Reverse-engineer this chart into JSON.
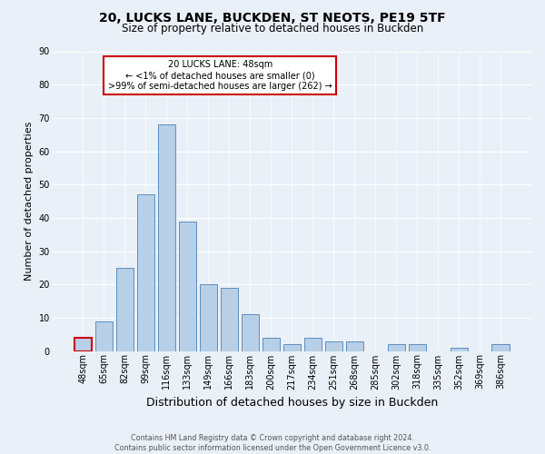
{
  "title1": "20, LUCKS LANE, BUCKDEN, ST NEOTS, PE19 5TF",
  "title2": "Size of property relative to detached houses in Buckden",
  "xlabel": "Distribution of detached houses by size in Buckden",
  "ylabel": "Number of detached properties",
  "footer": "Contains HM Land Registry data © Crown copyright and database right 2024.\nContains public sector information licensed under the Open Government Licence v3.0.",
  "categories": [
    "48sqm",
    "65sqm",
    "82sqm",
    "99sqm",
    "116sqm",
    "133sqm",
    "149sqm",
    "166sqm",
    "183sqm",
    "200sqm",
    "217sqm",
    "234sqm",
    "251sqm",
    "268sqm",
    "285sqm",
    "302sqm",
    "318sqm",
    "335sqm",
    "352sqm",
    "369sqm",
    "386sqm"
  ],
  "values": [
    4,
    9,
    25,
    47,
    68,
    39,
    20,
    19,
    11,
    4,
    2,
    4,
    3,
    3,
    0,
    2,
    2,
    0,
    1,
    0,
    2
  ],
  "bar_color": "#b8cfe8",
  "bar_edge_color": "#5a8fc0",
  "highlight_index": 0,
  "highlight_color": "#cc0000",
  "annotation_text": "20 LUCKS LANE: 48sqm\n← <1% of detached houses are smaller (0)\n>99% of semi-detached houses are larger (262) →",
  "annotation_box_color": "#ffffff",
  "annotation_box_edge": "#cc0000",
  "ylim": [
    0,
    90
  ],
  "yticks": [
    0,
    10,
    20,
    30,
    40,
    50,
    60,
    70,
    80,
    90
  ],
  "background_color": "#eaf0f8",
  "plot_background": "#eaf0f8",
  "title1_fontsize": 10,
  "title2_fontsize": 8.5,
  "xlabel_fontsize": 9,
  "ylabel_fontsize": 8,
  "footer_fontsize": 5.8,
  "tick_fontsize": 7,
  "ann_fontsize": 7
}
